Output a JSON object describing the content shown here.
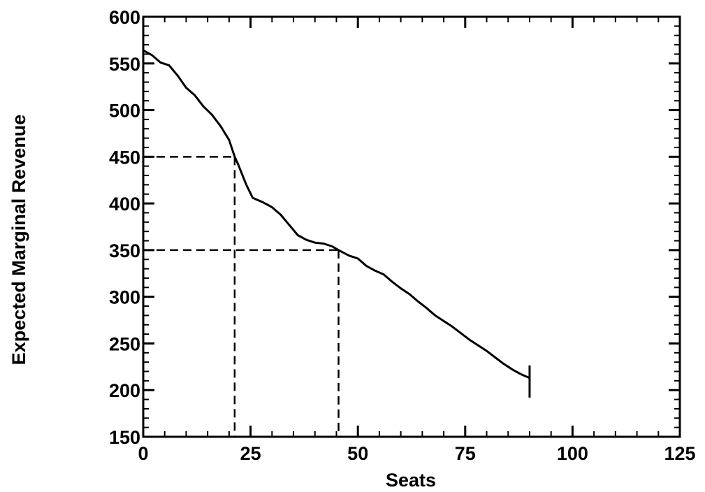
{
  "chart_data": {
    "type": "line",
    "title": "",
    "xlabel": "Seats",
    "ylabel": "Expected Marginal Revenue",
    "xlim": [
      0,
      125
    ],
    "ylim": [
      150,
      600
    ],
    "xticks": [
      0,
      25,
      50,
      75,
      100,
      125
    ],
    "yticks": [
      150,
      200,
      250,
      300,
      350,
      400,
      450,
      500,
      550,
      600
    ],
    "xtick_labels": [
      "0",
      "25",
      "50",
      "75",
      "100",
      "125"
    ],
    "ytick_labels": [
      "150",
      "200",
      "250",
      "300",
      "350",
      "400",
      "450",
      "500",
      "550",
      "600"
    ],
    "x_minor_step": 5,
    "y_minor_step": 10,
    "grid": false,
    "legend": "none",
    "series": [
      {
        "x": [
          0,
          2,
          4,
          6,
          8,
          10,
          12,
          14,
          16,
          18,
          20,
          21.3,
          22,
          24,
          25.5,
          28,
          30,
          32,
          34,
          36,
          38,
          40,
          42,
          44,
          45.5,
          48,
          50,
          52,
          54,
          56,
          58,
          60,
          62,
          64,
          66,
          68,
          70,
          72,
          74,
          76,
          78,
          80,
          82,
          84,
          86,
          88,
          90
        ],
        "y": [
          564,
          559,
          551,
          548,
          537,
          524,
          516,
          504,
          495,
          483,
          468,
          450,
          443,
          420,
          406,
          401,
          396,
          388,
          377,
          366,
          361,
          358,
          357,
          354,
          350,
          344,
          341,
          333,
          328,
          324,
          316,
          309,
          303,
          295,
          288,
          280,
          274,
          268,
          261,
          254,
          248,
          242,
          235,
          228,
          222,
          217,
          213
        ],
        "end_marker": true
      }
    ],
    "reference_lines": [
      {
        "x": 21.3,
        "y": 450
      },
      {
        "x": 45.5,
        "y": 350
      }
    ],
    "colors": {
      "line": "#000000",
      "axes": "#000000",
      "background": "#ffffff"
    }
  }
}
